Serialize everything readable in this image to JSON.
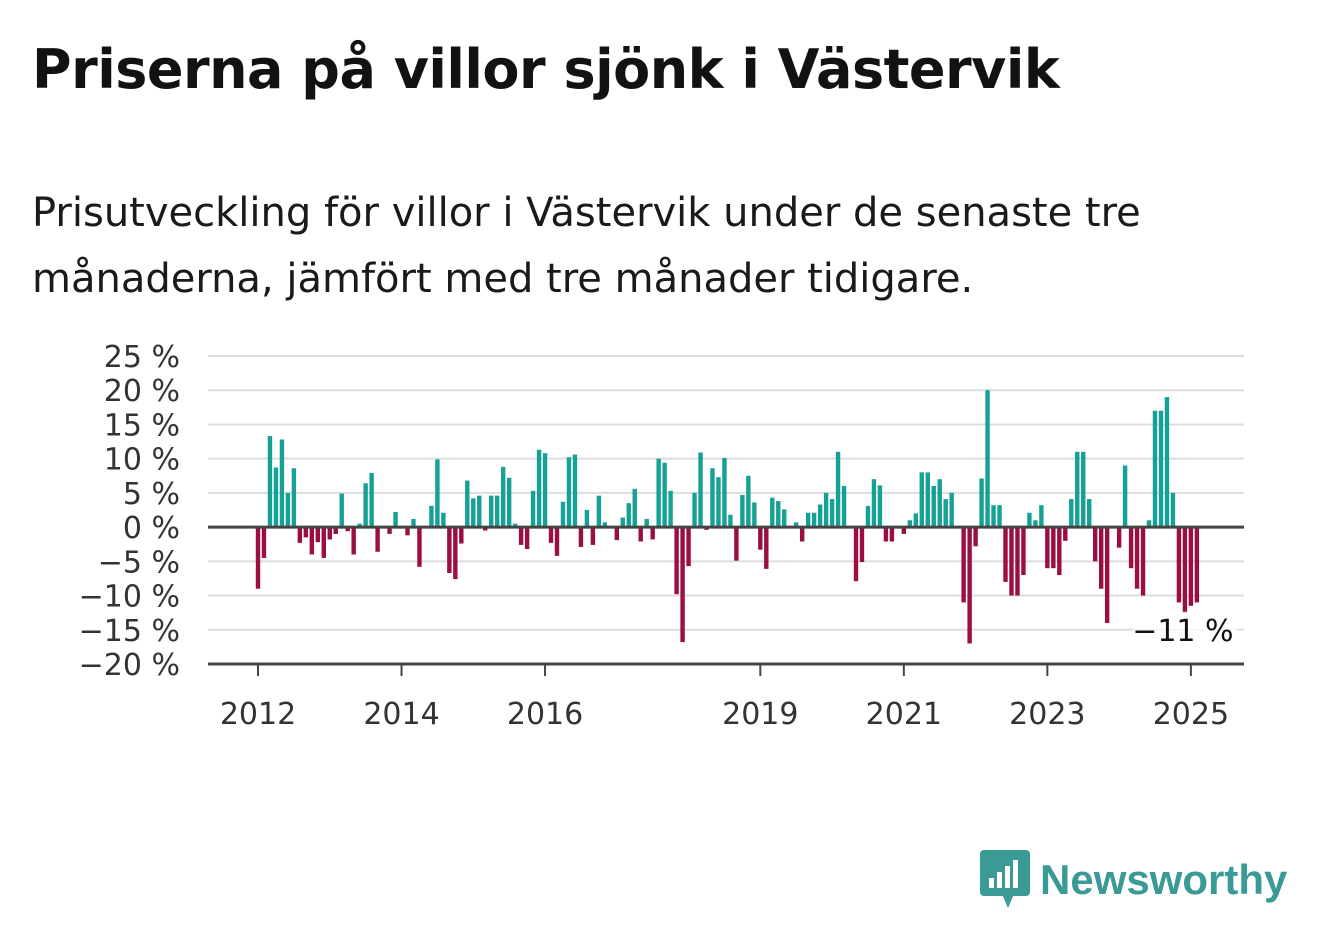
{
  "title": "Priserna på villor sjönk i Västervik",
  "subtitle": "Prisutveckling för villor i Västervik under de senaste tre månaderna, jämfört med tre månader tidigare.",
  "brand": {
    "name": "Newsworthy",
    "icon": "newsworthy-logo-icon"
  },
  "colors": {
    "positive": "#16a196",
    "negative": "#9b0e44",
    "grid": "#dddddd",
    "axis": "#444444"
  },
  "chart_data": {
    "type": "bar",
    "title": "",
    "xlabel": "",
    "ylabel": "",
    "ylim": [
      -20,
      25
    ],
    "y_ticks": [
      25,
      20,
      15,
      10,
      5,
      0,
      -5,
      -10,
      -15,
      -20
    ],
    "y_tick_labels": [
      "25 %",
      "20 %",
      "15 %",
      "10 %",
      "5 %",
      "0 %",
      "−5 %",
      "−10 %",
      "−15 %",
      "−20 %"
    ],
    "x_ticks": [
      {
        "index": 0,
        "label": "2012"
      },
      {
        "index": 24,
        "label": "2014"
      },
      {
        "index": 48,
        "label": "2016"
      },
      {
        "index": 84,
        "label": "2019"
      },
      {
        "index": 108,
        "label": "2021"
      },
      {
        "index": 132,
        "label": "2023"
      },
      {
        "index": 156,
        "label": "2025"
      }
    ],
    "start": "2012-01",
    "frequency": "monthly",
    "grid": true,
    "legend": "none",
    "annotation": {
      "text": "−11 %",
      "index": 156
    },
    "values": [
      -9,
      -4.5,
      13.3,
      8.7,
      12.8,
      5,
      8.6,
      -2.3,
      -1.5,
      -4,
      -2.2,
      -4.5,
      -1.8,
      -1,
      4.9,
      -0.6,
      -4,
      0.5,
      6.4,
      7.9,
      -3.6,
      0,
      -1,
      2.2,
      0,
      -1.2,
      1.2,
      -5.8,
      0,
      3.1,
      9.9,
      2.1,
      -6.7,
      -7.6,
      -2.4,
      6.8,
      4.2,
      4.6,
      -0.5,
      4.6,
      4.6,
      8.8,
      7.2,
      0.5,
      -2.6,
      -3.2,
      5.3,
      11.3,
      10.8,
      -2.3,
      -4.2,
      3.7,
      10.2,
      10.6,
      -2.9,
      2.5,
      -2.6,
      4.6,
      0.7,
      0,
      -1.9,
      1.4,
      3.5,
      5.6,
      -2.1,
      1.2,
      -1.8,
      10,
      9.4,
      5.3,
      -9.8,
      -16.8,
      -5.7,
      5,
      10.9,
      -0.4,
      8.6,
      7.3,
      10.1,
      1.8,
      -4.9,
      4.7,
      7.5,
      3.6,
      -3.3,
      -6.1,
      4.3,
      3.8,
      2.6,
      0,
      0.7,
      -2.1,
      2.1,
      2.1,
      3.3,
      5,
      4.1,
      11,
      6,
      0,
      -7.9,
      -5.1,
      3.1,
      7,
      6.1,
      -2.1,
      -2.1,
      0,
      -1,
      1,
      2,
      8,
      8,
      6,
      7,
      4.1,
      5,
      0,
      -11,
      -17,
      -2.8,
      7.1,
      20,
      3.2,
      3.2,
      -8,
      -10,
      -10,
      -7,
      2.1,
      1,
      3.2,
      -6,
      -6,
      -7,
      -2,
      4.1,
      11,
      11,
      4.1,
      -5,
      -9,
      -14,
      0,
      -3,
      9,
      -6,
      -9,
      -10,
      1,
      17,
      17,
      19,
      5,
      -11,
      -12.5,
      -11.5,
      -11
    ]
  }
}
